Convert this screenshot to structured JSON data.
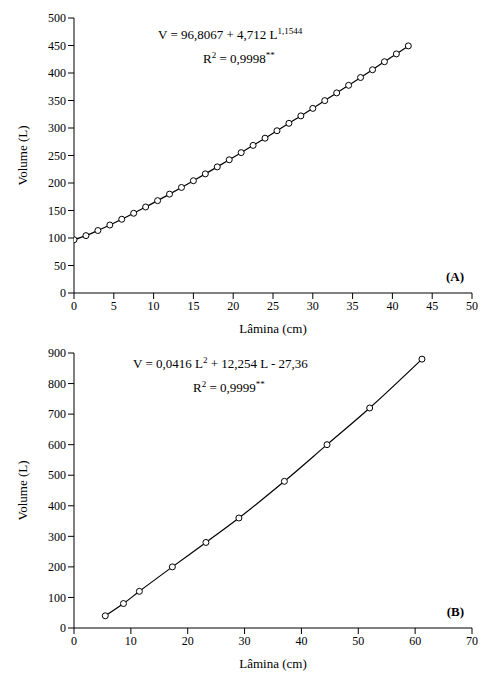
{
  "chart_data": [
    {
      "type": "line",
      "panel_label": "(A)",
      "x_label": "Lâmina (cm)",
      "y_label": "Volume (L)",
      "annotations": [
        [
          {
            "text": "V = 96,8067 + 4,712 L"
          },
          {
            "text": "1,1544",
            "sup": true
          }
        ],
        [
          {
            "text": "R"
          },
          {
            "text": "2",
            "sup": true
          },
          {
            "text": " = 0,9998"
          },
          {
            "text": "**",
            "sup": true
          }
        ]
      ],
      "x": [
        0,
        1.5,
        3,
        4.5,
        6,
        7.5,
        9,
        10.5,
        12,
        13.5,
        15,
        16.5,
        18,
        19.5,
        21,
        22.5,
        24,
        25.5,
        27,
        28.5,
        30,
        31.5,
        33,
        34.5,
        36,
        37.5,
        39,
        40.5,
        42
      ],
      "values": [
        96.8,
        104.3,
        113.6,
        123.6,
        134.1,
        145.0,
        156.4,
        167.9,
        179.8,
        191.9,
        204.1,
        216.6,
        229.3,
        242.2,
        255.2,
        268.4,
        281.5,
        295.0,
        308.5,
        322.0,
        335.7,
        349.8,
        363.8,
        377.6,
        391.8,
        405.9,
        420.5,
        434.7,
        449.3
      ],
      "color": "#000000",
      "marker": "circle",
      "line_style": "solid",
      "grid": false,
      "xlim": [
        0,
        50
      ],
      "xticks": [
        0,
        5,
        10,
        15,
        20,
        25,
        30,
        35,
        40,
        45,
        50
      ],
      "ylim": [
        0,
        500
      ],
      "yticks": [
        0,
        50,
        100,
        150,
        200,
        250,
        300,
        350,
        400,
        450,
        500
      ]
    },
    {
      "type": "line",
      "panel_label": "(B)",
      "x_label": "Lâmina (cm)",
      "y_label": "Volume (L)",
      "annotations": [
        [
          {
            "text": "V = 0,0416 L"
          },
          {
            "text": "2",
            "sup": true
          },
          {
            "text": " + 12,254 L - 27,36"
          }
        ],
        [
          {
            "text": "R"
          },
          {
            "text": "2",
            "sup": true
          },
          {
            "text": " = 0,9999"
          },
          {
            "text": "**",
            "sup": true
          }
        ]
      ],
      "x": [
        5.5,
        8.7,
        11.5,
        17.3,
        23.2,
        29,
        37,
        44.5,
        52,
        61.2
      ],
      "values": [
        40,
        80,
        120,
        200,
        280,
        360,
        480,
        600,
        720,
        880
      ],
      "color": "#000000",
      "marker": "circle",
      "line_style": "solid",
      "grid": false,
      "xlim": [
        0,
        70
      ],
      "xticks": [
        0,
        10,
        20,
        30,
        40,
        50,
        60,
        70
      ],
      "ylim": [
        0,
        900
      ],
      "yticks": [
        0,
        100,
        200,
        300,
        400,
        500,
        600,
        700,
        800,
        900
      ]
    }
  ]
}
